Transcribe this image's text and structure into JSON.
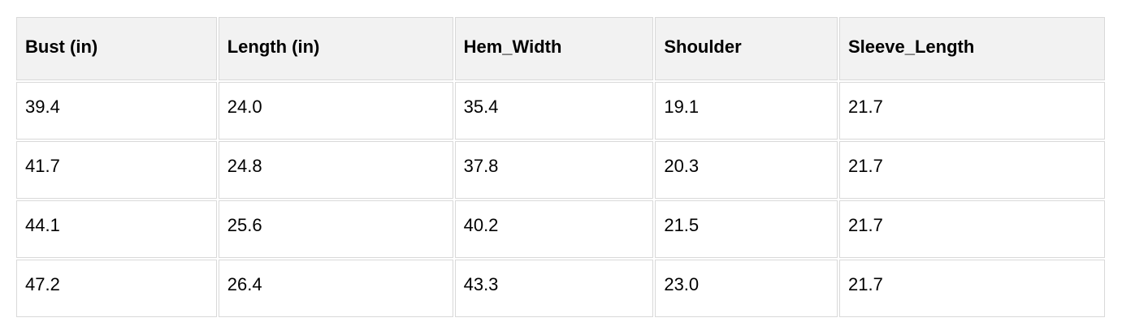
{
  "chart_data": {
    "type": "table",
    "title": "",
    "columns": [
      "Bust (in)",
      "Length (in)",
      "Hem_Width",
      "Shoulder",
      "Sleeve_Length"
    ],
    "rows": [
      [
        "39.4",
        "24.0",
        "35.4",
        "19.1",
        "21.7"
      ],
      [
        "41.7",
        "24.8",
        "37.8",
        "20.3",
        "21.7"
      ],
      [
        "44.1",
        "25.6",
        "40.2",
        "21.5",
        "21.7"
      ],
      [
        "47.2",
        "26.4",
        "43.3",
        "23.0",
        "21.7"
      ]
    ],
    "layout": {
      "header_background": "#f2f2f2",
      "cell_background": "#ffffff",
      "border_color": "#d9d9d9",
      "text_color": "#000000"
    }
  }
}
